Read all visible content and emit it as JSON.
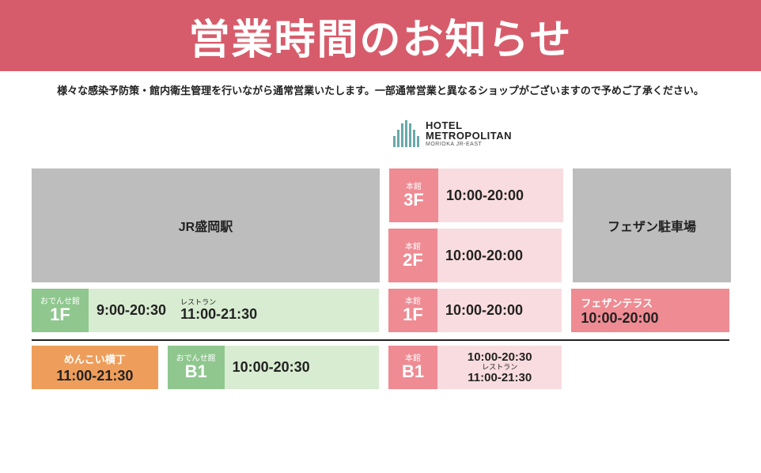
{
  "colors": {
    "banner_bg": "#d75c6b",
    "gray": "#bdbdbd",
    "pink_bg": "#ee8b93",
    "pink_light": "#f9dcdf",
    "green_bg": "#8fc78f",
    "green_light": "#d8ecd1",
    "orange_bg": "#ee9e5a",
    "orange_light": "#fbe6cf",
    "hotel_bar": "#6aa9aa"
  },
  "header": {
    "title": "営業時間のお知らせ"
  },
  "notice": "様々な感染予防策・館内衛生管理を行いながら通常営業いたします。一部通常営業と異なるショップがございますので予めご了承ください。",
  "hotel_logo": {
    "line1": "HOTEL",
    "line2": "METROPOLITAN",
    "subline": "MORIOKA JR-EAST",
    "bars": [
      14,
      22,
      30,
      34,
      30,
      22,
      14
    ]
  },
  "jr_block": {
    "label": "JR盛岡駅"
  },
  "parking_block": {
    "label": "フェザン駐車場"
  },
  "main_3f": {
    "toplabel": "本館",
    "floor": "3F",
    "time": "10:00-20:00"
  },
  "main_2f": {
    "toplabel": "本館",
    "floor": "2F",
    "time": "10:00-20:00"
  },
  "main_1f": {
    "toplabel": "本館",
    "floor": "1F",
    "time": "10:00-20:00"
  },
  "main_b1": {
    "toplabel": "本館",
    "floor": "B1",
    "time1": "10:00-20:30",
    "rest_label": "レストラン",
    "time2": "11:00-21:30"
  },
  "odense_1f": {
    "toplabel": "おでんせ館",
    "floor": "1F",
    "time1": "9:00-20:30",
    "rest_label": "レストラン",
    "time2": "11:00-21:30"
  },
  "odense_b1": {
    "toplabel": "おでんせ館",
    "floor": "B1",
    "time": "10:00-20:30"
  },
  "menkoi": {
    "toplabel": "めんこい横丁",
    "time": "11:00-21:30"
  },
  "fezan_terrace": {
    "label": "フェザンテラス",
    "time": "10:00-20:00"
  }
}
